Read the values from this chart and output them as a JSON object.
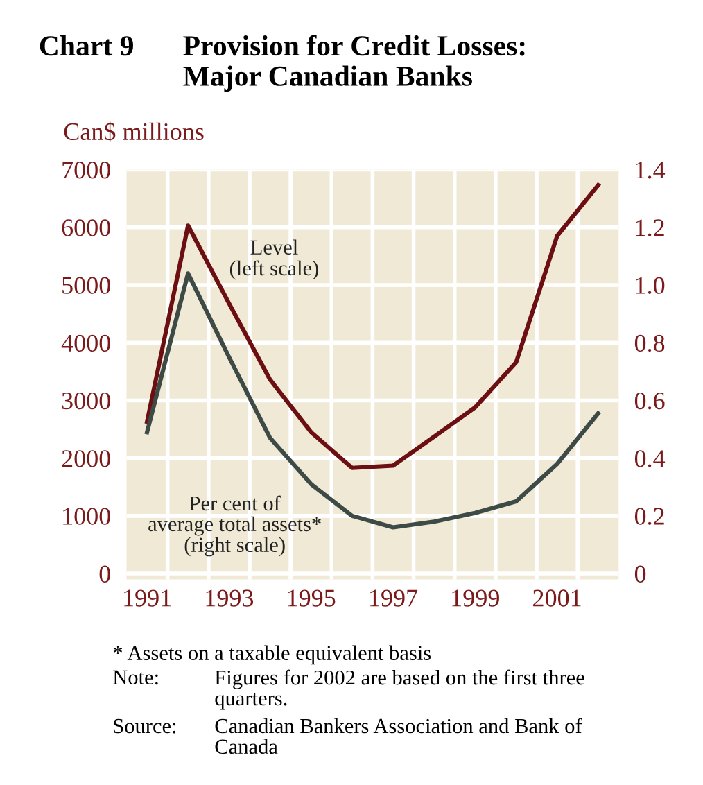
{
  "chart_data": {
    "type": "line",
    "title": "Chart 9",
    "subtitle": "Provision for Credit Losses:\nMajor Canadian Banks",
    "ylabel": "Can$ millions",
    "x": [
      1991,
      1992,
      1993,
      1994,
      1995,
      1996,
      1997,
      1998,
      1999,
      2000,
      2001,
      2002
    ],
    "series": [
      {
        "name": "Level\n(left scale)",
        "color": "#6b0f12",
        "values": [
          2630,
          6030,
          4680,
          3360,
          2450,
          1830,
          1870,
          2370,
          2880,
          3660,
          5850,
          6730
        ]
      },
      {
        "name": "Per cent of\naverage total assets*\n(right scale)",
        "color": "#3d4a45",
        "axis": "y2",
        "values": [
          0.49,
          1.04,
          0.75,
          0.47,
          0.31,
          0.2,
          0.16,
          0.18,
          0.21,
          0.25,
          0.38,
          0.555
        ]
      }
    ],
    "xlim": [
      1990.5,
      2002.5
    ],
    "xticks": [
      1991,
      {
        "value": 1991.5,
        "label": null
      },
      {
        "value": 1992.5,
        "label": null
      },
      1993,
      {
        "value": 1993.5,
        "label": null
      },
      {
        "value": 1994.5,
        "label": null
      },
      1995,
      {
        "value": 1995.5,
        "label": null
      },
      {
        "value": 1996.5,
        "label": null
      },
      1997,
      {
        "value": 1997.5,
        "label": null
      },
      {
        "value": 1998.5,
        "label": null
      },
      1999,
      {
        "value": 1999.5,
        "label": null
      },
      {
        "value": 2000.5,
        "label": null
      },
      2001,
      {
        "value": 2001.5,
        "label": null
      }
    ],
    "ylim": [
      -100,
      7000
    ],
    "yticks": [
      0,
      1000,
      2000,
      3000,
      4000,
      5000,
      6000,
      7000
    ],
    "y2lim": [
      -0.02,
      1.4
    ],
    "y2ticks": [
      0,
      0.2,
      0.4,
      0.6,
      0.8,
      {
        "value": 1,
        "label": "1.0"
      },
      1.2,
      1.4
    ],
    "grid": true,
    "legend": false,
    "marker": "none",
    "line_style": "solid",
    "annotations": [
      "* Assets on a taxable equivalent basis",
      "Note: Figures for 2002 are based on the first three\nquarters.",
      "Source: Canadian Bankers Association and Bank of\nCanada"
    ]
  }
}
